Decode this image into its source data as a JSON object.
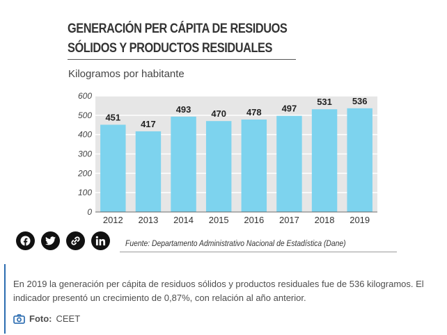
{
  "chart_data": {
    "type": "bar",
    "title": "GENERACIÓN PER CÁPITA DE RESIDUOS SÓLIDOS Y PRODUCTOS RESIDUALES",
    "title_lines": [
      "GENERACIÓN PER CÁPITA DE RESIDUOS",
      "SÓLIDOS Y PRODUCTOS RESIDUALES"
    ],
    "subtitle": "Kilogramos por habitante",
    "categories": [
      "2012",
      "2013",
      "2014",
      "2015",
      "2016",
      "2017",
      "2018",
      "2019"
    ],
    "values": [
      451,
      417,
      493,
      470,
      478,
      497,
      531,
      536
    ],
    "yticks": [
      "0",
      "100",
      "200",
      "300",
      "400",
      "500",
      "600"
    ],
    "ylim": [
      0,
      600
    ],
    "grid": true,
    "data_labels": true,
    "bar_color": "#7dd3ee",
    "plot_background": "#e6e6e6",
    "gridline_color": "#ffffff",
    "source": "Fuente: Departamento Administrativo Nacional de Estadística (Dane)"
  },
  "share": {
    "facebook": "facebook-icon",
    "twitter": "twitter-icon",
    "link": "link-icon",
    "linkedin": "linkedin-icon"
  },
  "caption": {
    "text": "En 2019 la generación per cápita de residuos sólidos y productos residuales fue de 536 kilogramos. El indicador presentó un crecimiento de 0,87%, con relación al año anterior.",
    "credit_label": "Foto:",
    "credit_value": "CEET",
    "accent_color": "#2b6cb0"
  }
}
